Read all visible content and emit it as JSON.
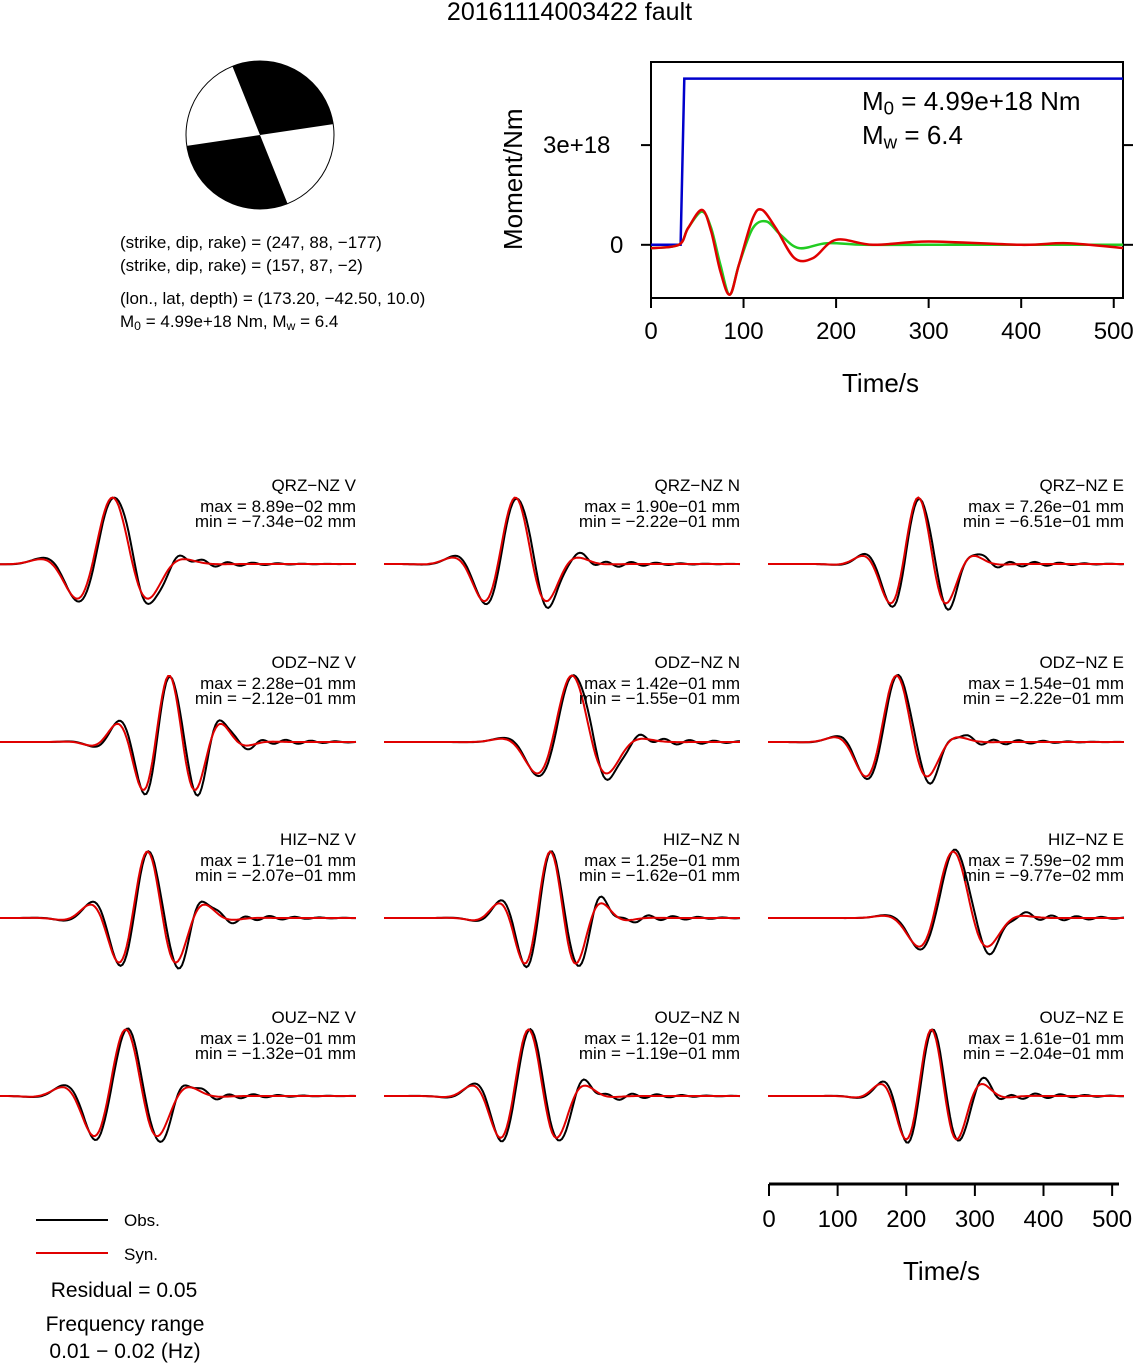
{
  "title": "20161114003422 fault",
  "mechanism": {
    "plane1": "(strike, dip, rake) = (247, 88, −177)",
    "plane2": "(strike, dip, rake) = (157, 87, −2)",
    "location": "(lon., lat, depth) = (173.20, −42.50, 10.0)",
    "m0_prefix": "M",
    "m0_sub": "0",
    "m0_mid": " = 4.99e+18 Nm, M",
    "mw_sub": "w",
    "mw_suffix": " = 6.4"
  },
  "stf": {
    "m0_prefix": "M",
    "m0_sub": "0",
    "m0_value": " = 4.99e+18 Nm",
    "mw_prefix": "M",
    "mw_sub": "w",
    "mw_value": " = 6.4",
    "ylabel": "Moment/Nm",
    "xlabel": "Time/s",
    "yticks": [
      "0",
      "3e+18"
    ],
    "xticks": [
      "0",
      "100",
      "200",
      "300",
      "400",
      "500"
    ]
  },
  "waveform_axis": {
    "xlabel": "Time/s",
    "xticks": [
      "0",
      "100",
      "200",
      "300",
      "400",
      "500"
    ]
  },
  "legend": {
    "obs": "Obs.",
    "syn": "Syn.",
    "obs_color": "#000000",
    "syn_color": "#e00000"
  },
  "residual": "Residual = 0.05",
  "frequency_label": "Frequency range",
  "frequency_value": "0.01 − 0.02 (Hz)",
  "colors": {
    "moment_curve": "#0000cc",
    "moment_rate_green": "#22cc22",
    "moment_rate_red": "#e00000",
    "beachball": "#000000"
  },
  "chart_data": [
    {
      "type": "line",
      "title": "",
      "xlabel": "Time/s",
      "ylabel": "Moment/Nm",
      "xlim": [
        0,
        510
      ],
      "ylim": [
        -1.6e+18,
        5.5e+18
      ],
      "series": [
        {
          "x": [
            0,
            32,
            36,
            510
          ],
          "y": [
            0,
            0,
            5e+18,
            5e+18
          ]
        },
        {
          "x": [
            0,
            30,
            40,
            55,
            65,
            75,
            85,
            95,
            110,
            125,
            140,
            160,
            190,
            230,
            300,
            400,
            510
          ],
          "y": [
            -1e+17,
            0,
            5e+17,
            1e+18,
            5e+17,
            -6e+17,
            -1.5e+18,
            -6e+17,
            5e+17,
            7e+17,
            3e+17,
            -1e+17,
            5e+16,
            0.0,
            0.0,
            0.0,
            0.0
          ]
        },
        {
          "x": [
            0,
            30,
            40,
            55,
            65,
            75,
            85,
            95,
            110,
            120,
            135,
            155,
            175,
            200,
            240,
            300,
            400,
            450,
            510
          ],
          "y": [
            -1e+17,
            0,
            5e+17,
            1.05e+18,
            4e+17,
            -8e+17,
            -1.5e+18,
            -6e+17,
            8e+17,
            1.05e+18,
            5e+17,
            -4e+17,
            -4e+17,
            1.5e+17,
            0.0,
            1e+17,
            0.0,
            5e+16,
            -1e+17
          ]
        }
      ]
    },
    {
      "type": "line",
      "xlabel": "Time/s",
      "xlim": [
        0,
        510
      ],
      "stations": [
        {
          "label": "QRZ−NZ V",
          "max": "max = 8.89e−02 mm",
          "min": "min = −7.34e−02 mm"
        },
        {
          "label": "QRZ−NZ N",
          "max": "max = 1.90e−01 mm",
          "min": "min = −2.22e−01 mm"
        },
        {
          "label": "QRZ−NZ E",
          "max": "max = 7.26e−01 mm",
          "min": "min = −6.51e−01 mm"
        },
        {
          "label": "ODZ−NZ V",
          "max": "max = 2.28e−01 mm",
          "min": "min = −2.12e−01 mm"
        },
        {
          "label": "ODZ−NZ N",
          "max": "max = 1.42e−01 mm",
          "min": "min = −1.55e−01 mm"
        },
        {
          "label": "ODZ−NZ E",
          "max": "max = 1.54e−01 mm",
          "min": "min = −2.22e−01 mm"
        },
        {
          "label": "HIZ−NZ V",
          "max": "max = 1.71e−01 mm",
          "min": "min = −2.07e−01 mm"
        },
        {
          "label": "HIZ−NZ N",
          "max": "max = 1.25e−01 mm",
          "min": "min = −1.62e−01 mm"
        },
        {
          "label": "HIZ−NZ E",
          "max": "max = 7.59e−02 mm",
          "min": "min = −9.77e−02 mm"
        },
        {
          "label": "OUZ−NZ V",
          "max": "max = 1.02e−01 mm",
          "min": "min = −1.32e−01 mm"
        },
        {
          "label": "OUZ−NZ N",
          "max": "max = 1.12e−01 mm",
          "min": "min = −1.19e−01 mm"
        },
        {
          "label": "OUZ−NZ E",
          "max": "max = 1.61e−01 mm",
          "min": "min = −2.04e−01 mm"
        }
      ]
    }
  ]
}
